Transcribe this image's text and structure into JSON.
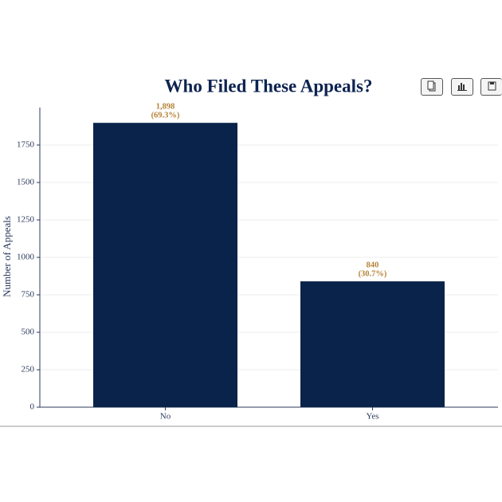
{
  "chart_data": {
    "type": "bar",
    "title": "Who Filed These Appeals?",
    "y_label": "Number of Appeals",
    "categories": [
      "No",
      "Yes"
    ],
    "values": [
      1898,
      840
    ],
    "value_labels": [
      "1,898",
      "840"
    ],
    "shares": [
      69.3,
      30.7
    ],
    "share_labels": [
      "(69.3%)",
      "(30.7%)"
    ],
    "color": "#0a234a",
    "ylim": [
      0,
      2000
    ],
    "yticks": [
      0,
      250,
      500,
      750,
      1000,
      1250,
      1500,
      1750
    ],
    "grid": true
  }
}
